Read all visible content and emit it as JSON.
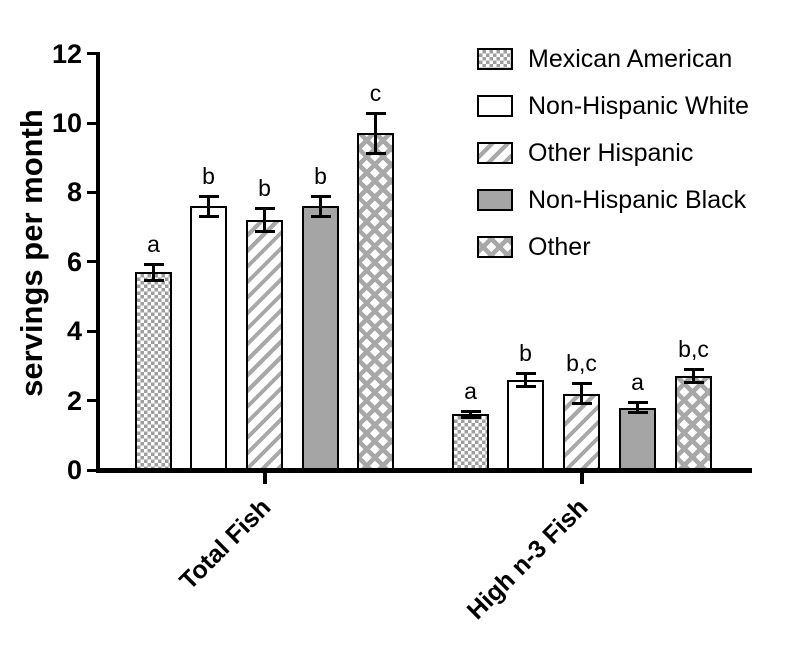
{
  "chart_data": {
    "type": "bar",
    "title": "",
    "xlabel": "",
    "ylabel": "servings per month",
    "ylim": [
      0,
      12
    ],
    "yticks": [
      0,
      2,
      4,
      6,
      8,
      10,
      12
    ],
    "grid": false,
    "legend_position": "top-right",
    "categories": [
      "Total Fish",
      "High n-3 Fish"
    ],
    "series": [
      {
        "name": "Mexican American",
        "pattern": "checker",
        "values": [
          5.7,
          1.6
        ],
        "errors": [
          0.25,
          0.1
        ],
        "sig_letters": [
          "a",
          "a"
        ]
      },
      {
        "name": "Non-Hispanic White",
        "pattern": "plain",
        "values": [
          7.6,
          2.6
        ],
        "errors": [
          0.3,
          0.2
        ],
        "sig_letters": [
          "b",
          "b"
        ]
      },
      {
        "name": "Other Hispanic",
        "pattern": "diagonal",
        "values": [
          7.2,
          2.2
        ],
        "errors": [
          0.35,
          0.3
        ],
        "sig_letters": [
          "b",
          "b,c"
        ]
      },
      {
        "name": "Non-Hispanic Black",
        "pattern": "solid",
        "values": [
          7.6,
          1.8
        ],
        "errors": [
          0.3,
          0.15
        ],
        "sig_letters": [
          "b",
          "a"
        ]
      },
      {
        "name": "Other",
        "pattern": "crosshatch",
        "values": [
          9.7,
          2.7
        ],
        "errors": [
          0.6,
          0.2
        ],
        "sig_letters": [
          "c",
          "b,c"
        ]
      }
    ],
    "colors": {
      "pattern_gray": "#a8a8a8",
      "solid_gray": "#a5a5a5",
      "axis": "#000000",
      "background": "#ffffff"
    }
  }
}
